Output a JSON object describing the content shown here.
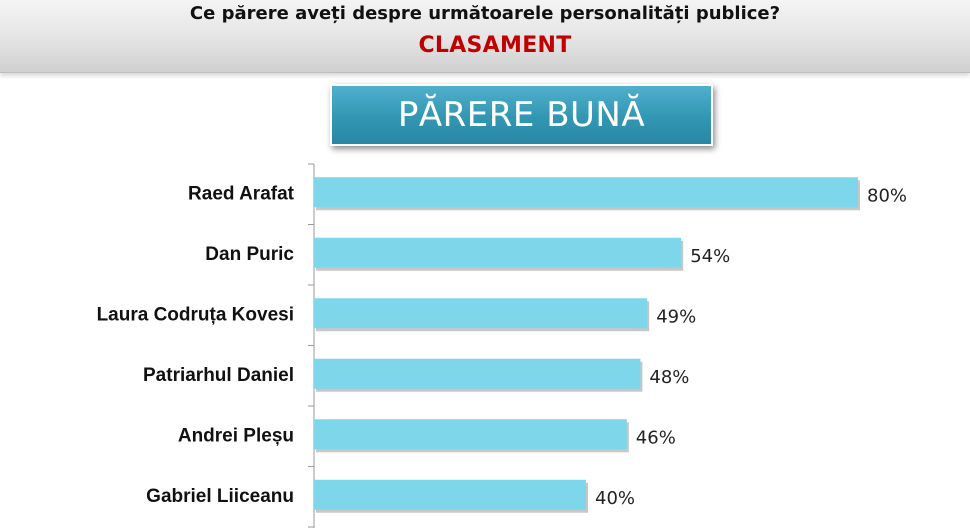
{
  "header": {
    "question": "Ce părere aveți despre următoarele personalități publice?",
    "subtitle": "CLASAMENT",
    "subtitle_color": "#c00000"
  },
  "badge": {
    "label": "PĂRERE BUNĂ",
    "color": "#3399b7"
  },
  "chart_data": {
    "type": "bar",
    "orientation": "horizontal",
    "categories": [
      "Raed Arafat",
      "Dan Puric",
      "Laura Codruța Kovesi",
      "Patriarhul Daniel",
      "Andrei Pleșu",
      "Gabriel Liiceanu"
    ],
    "values": [
      80,
      54,
      49,
      48,
      46,
      40
    ],
    "value_labels": [
      "80%",
      "54%",
      "49%",
      "48%",
      "46%",
      "40%"
    ],
    "unit": "%",
    "xlim": [
      0,
      100
    ],
    "bar_color": "#7dd6ea",
    "grid": false,
    "legend": "none"
  }
}
